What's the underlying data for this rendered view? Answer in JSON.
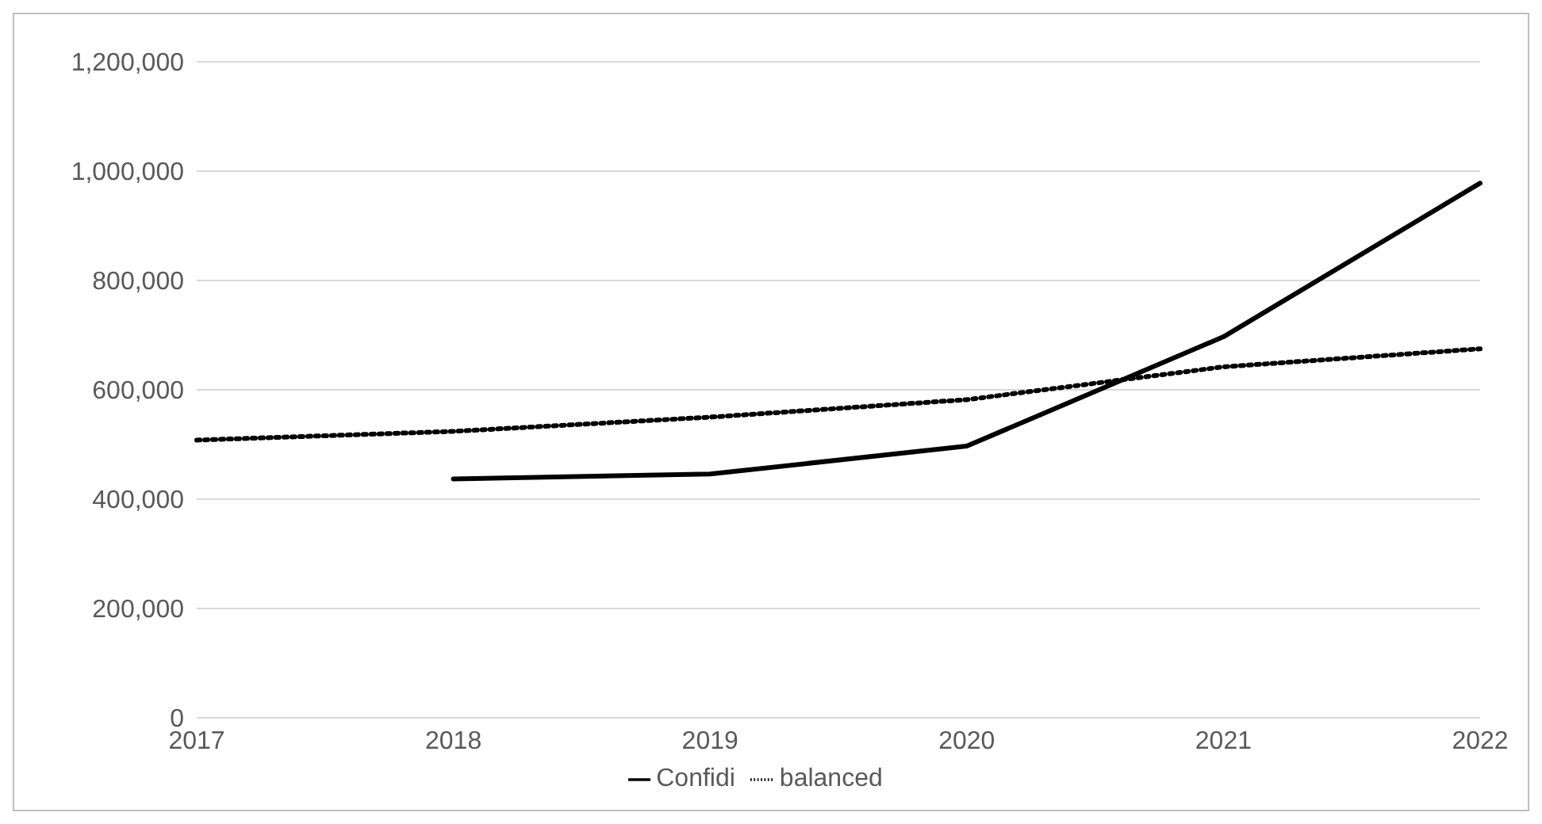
{
  "chart_data": {
    "type": "line",
    "categories": [
      "2017",
      "2018",
      "2019",
      "2020",
      "2021",
      "2022"
    ],
    "series": [
      {
        "name": "balanced",
        "color": "#000000",
        "line_style": "dotted",
        "values": [
          508000,
          524000,
          550000,
          582000,
          642000,
          675000
        ]
      },
      {
        "name": "Confidi",
        "color": "#000000",
        "line_style": "solid",
        "values": [
          null,
          437000,
          446000,
          497000,
          697000,
          978000
        ]
      }
    ],
    "ylim": [
      0,
      1200000
    ],
    "yticks": [
      {
        "value": 0,
        "label": "0"
      },
      {
        "value": 200000,
        "label": "200,000"
      },
      {
        "value": 400000,
        "label": "400,000"
      },
      {
        "value": 600000,
        "label": "600,000"
      },
      {
        "value": 800000,
        "label": "800,000"
      },
      {
        "value": 1000000,
        "label": "1,000,000"
      },
      {
        "value": 1200000,
        "label": "1,200,000"
      }
    ],
    "grid": "y",
    "legend": "bottom",
    "marker": "none"
  }
}
